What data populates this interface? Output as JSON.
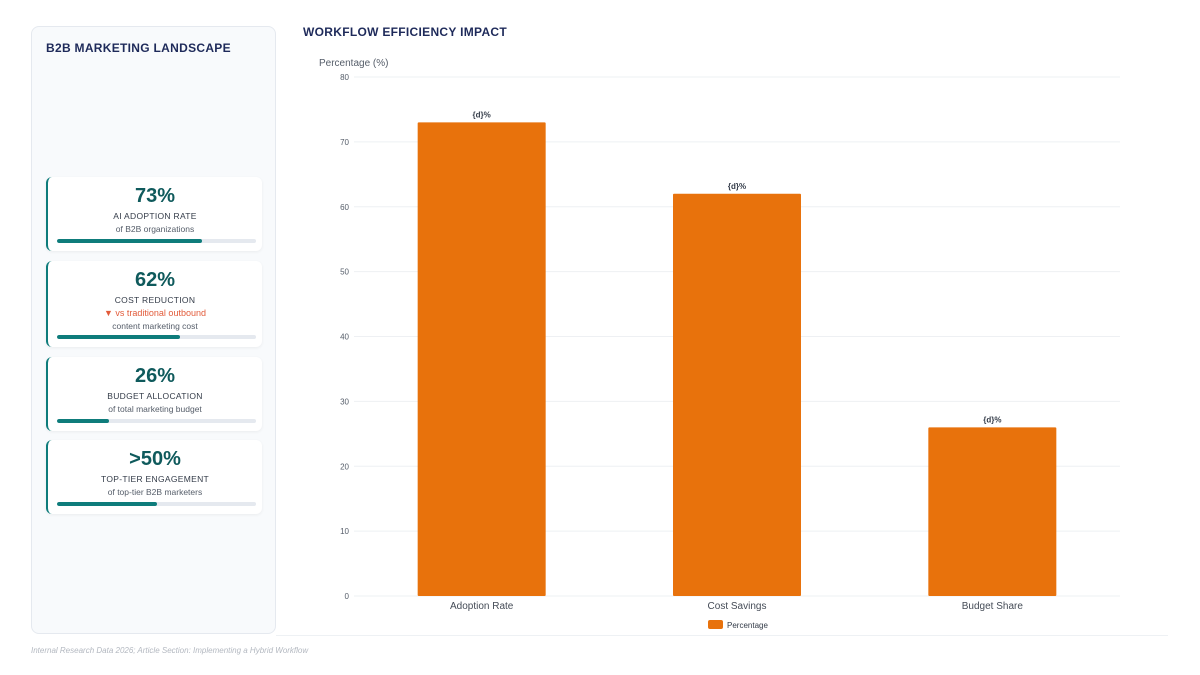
{
  "sidebar": {
    "title": "B2B MARKETING LANDSCAPE",
    "kpis": [
      {
        "value": "73%",
        "label": "AI ADOPTION RATE",
        "trend": "",
        "sub": "of B2B organizations",
        "progress": 0.73
      },
      {
        "value": "62%",
        "label": "COST REDUCTION",
        "trend": "▼ vs traditional outbound",
        "sub": "content marketing cost",
        "progress": 0.62
      },
      {
        "value": "26%",
        "label": "BUDGET ALLOCATION",
        "trend": "",
        "sub": "of total marketing budget",
        "progress": 0.26
      },
      {
        "value": ">50%",
        "label": "TOP-TIER ENGAGEMENT",
        "trend": "",
        "sub": "of top-tier B2B marketers",
        "progress": 0.5
      }
    ]
  },
  "footer": "Internal Research Data 2026; Article Section: Implementing a Hybrid Workflow",
  "colors": {
    "bar": "#e8720c",
    "accent": "#0e7c7b",
    "title": "#1e2a5a"
  },
  "chart_data": {
    "type": "bar",
    "title": "WORKFLOW EFFICIENCY IMPACT",
    "ylabel": "Percentage (%)",
    "xlabel": "",
    "categories": [
      "Adoption Rate",
      "Cost Savings",
      "Budget Share"
    ],
    "series": [
      {
        "name": "Percentage",
        "values": [
          73,
          62,
          26
        ]
      }
    ],
    "data_label_text": "{d}%",
    "ylim": [
      0,
      80
    ],
    "yticks": [
      0,
      10,
      20,
      30,
      40,
      50,
      60,
      70,
      80
    ],
    "grid": true,
    "legend": "bottom-center"
  }
}
